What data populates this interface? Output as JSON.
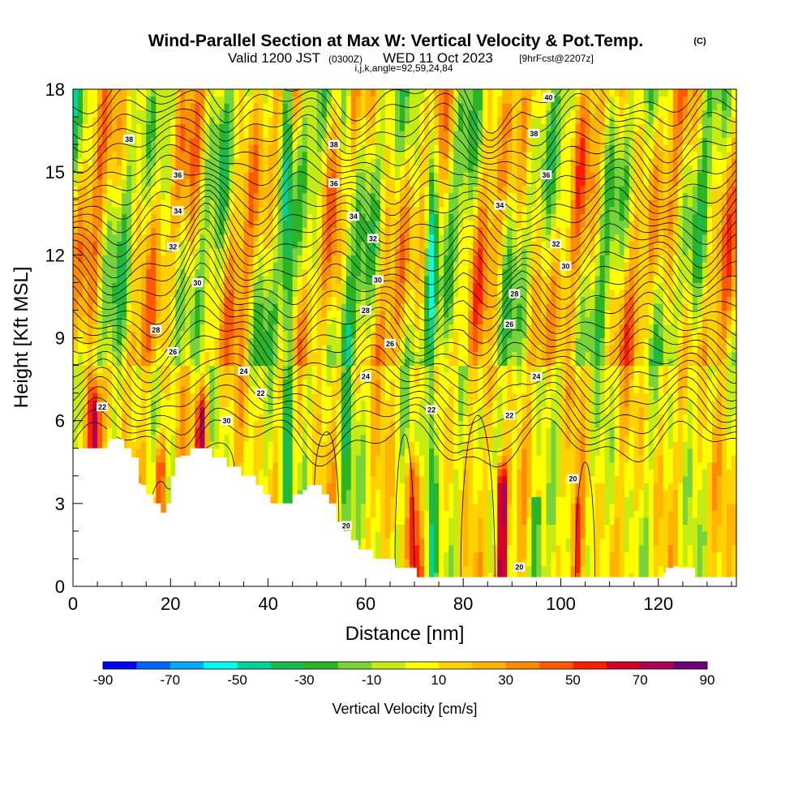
{
  "chart_data": {
    "type": "heatmap",
    "title": "Wind-Parallel Section at Max W: Vertical Velocity & Pot.Temp.",
    "title_mark": "(C)",
    "subtitle_main": "Valid 1200 JST",
    "subtitle_utc": "(0300Z)",
    "subtitle_date": "WED 11 Oct 2023",
    "subtitle_fcst": "[9hrFcst@2207z]",
    "subtitle_ijk": "i,j,k,angle=92,59,24,84",
    "xlabel": "Distance [nm]",
    "ylabel": "Height [Kft MSL]",
    "xlim": [
      0,
      136
    ],
    "ylim": [
      0,
      18
    ],
    "x_ticks": [
      0,
      20,
      40,
      60,
      80,
      100,
      120
    ],
    "y_ticks": [
      0,
      3,
      6,
      9,
      12,
      15,
      18
    ],
    "colorbar": {
      "title": "Vertical Velocity [cm/s]",
      "ticks": [
        -90,
        -70,
        -50,
        -30,
        -10,
        10,
        30,
        50,
        70,
        90
      ],
      "colors": [
        "#0000ff",
        "#0064ff",
        "#00aaff",
        "#00ffee",
        "#00d29a",
        "#1aba4c",
        "#2db424",
        "#78d23a",
        "#c4ec12",
        "#ffff00",
        "#ffd200",
        "#ffb400",
        "#ff8c00",
        "#ff5a00",
        "#ff1e00",
        "#d2002a",
        "#aa0055",
        "#6e007a"
      ]
    },
    "updraft_columns": [
      {
        "x": 4.5,
        "w": 85,
        "ztop": 7.8
      },
      {
        "x": 18.0,
        "w": 60,
        "ztop": 6.0
      },
      {
        "x": 26.5,
        "w": 75,
        "ztop": 7.8
      },
      {
        "x": 70.0,
        "w": 60,
        "ztop": 5.4
      },
      {
        "x": 88.0,
        "w": 90,
        "ztop": 5.2
      },
      {
        "x": 103.5,
        "w": 45,
        "ztop": 4.0
      }
    ],
    "downdraft_columns": [
      {
        "x": 44.0,
        "w": -45,
        "ztop": 18
      },
      {
        "x": 73.5,
        "w": -45,
        "ztop": 18
      },
      {
        "x": 95.0,
        "w": -50,
        "ztop": 3.2
      },
      {
        "x": 56.0,
        "w": -30,
        "ztop": 18
      }
    ],
    "contour_labels": [
      {
        "text": "38",
        "x": 11.5,
        "y": 16.2
      },
      {
        "text": "36",
        "x": 21.5,
        "y": 14.9
      },
      {
        "text": "34",
        "x": 21.5,
        "y": 13.6
      },
      {
        "text": "32",
        "x": 20.5,
        "y": 12.3
      },
      {
        "text": "30",
        "x": 25.5,
        "y": 11.0
      },
      {
        "text": "28",
        "x": 17.0,
        "y": 9.3
      },
      {
        "text": "26",
        "x": 20.5,
        "y": 8.5
      },
      {
        "text": "24",
        "x": 35.0,
        "y": 7.8
      },
      {
        "text": "22",
        "x": 38.5,
        "y": 7.0
      },
      {
        "text": "22",
        "x": 6.0,
        "y": 6.5
      },
      {
        "text": "30",
        "x": 31.5,
        "y": 6.0
      },
      {
        "text": "38",
        "x": 53.5,
        "y": 16.0
      },
      {
        "text": "36",
        "x": 53.5,
        "y": 14.6
      },
      {
        "text": "34",
        "x": 57.5,
        "y": 13.4
      },
      {
        "text": "32",
        "x": 61.5,
        "y": 12.6
      },
      {
        "text": "30",
        "x": 62.5,
        "y": 11.1
      },
      {
        "text": "28",
        "x": 60.0,
        "y": 10.0
      },
      {
        "text": "26",
        "x": 65.0,
        "y": 8.8
      },
      {
        "text": "24",
        "x": 60.0,
        "y": 7.6
      },
      {
        "text": "22",
        "x": 73.5,
        "y": 6.4
      },
      {
        "text": "20",
        "x": 56.0,
        "y": 2.2
      },
      {
        "text": "40",
        "x": 97.5,
        "y": 17.7
      },
      {
        "text": "38",
        "x": 94.5,
        "y": 16.4
      },
      {
        "text": "36",
        "x": 97.0,
        "y": 14.9
      },
      {
        "text": "34",
        "x": 87.5,
        "y": 13.8
      },
      {
        "text": "32",
        "x": 99.0,
        "y": 12.4
      },
      {
        "text": "30",
        "x": 101.0,
        "y": 11.6
      },
      {
        "text": "28",
        "x": 90.5,
        "y": 10.6
      },
      {
        "text": "26",
        "x": 89.5,
        "y": 9.5
      },
      {
        "text": "24",
        "x": 95.0,
        "y": 7.6
      },
      {
        "text": "22",
        "x": 89.5,
        "y": 6.2
      },
      {
        "text": "20",
        "x": 102.5,
        "y": 3.9
      },
      {
        "text": "20",
        "x": 91.5,
        "y": 0.7
      }
    ],
    "grid": false
  }
}
